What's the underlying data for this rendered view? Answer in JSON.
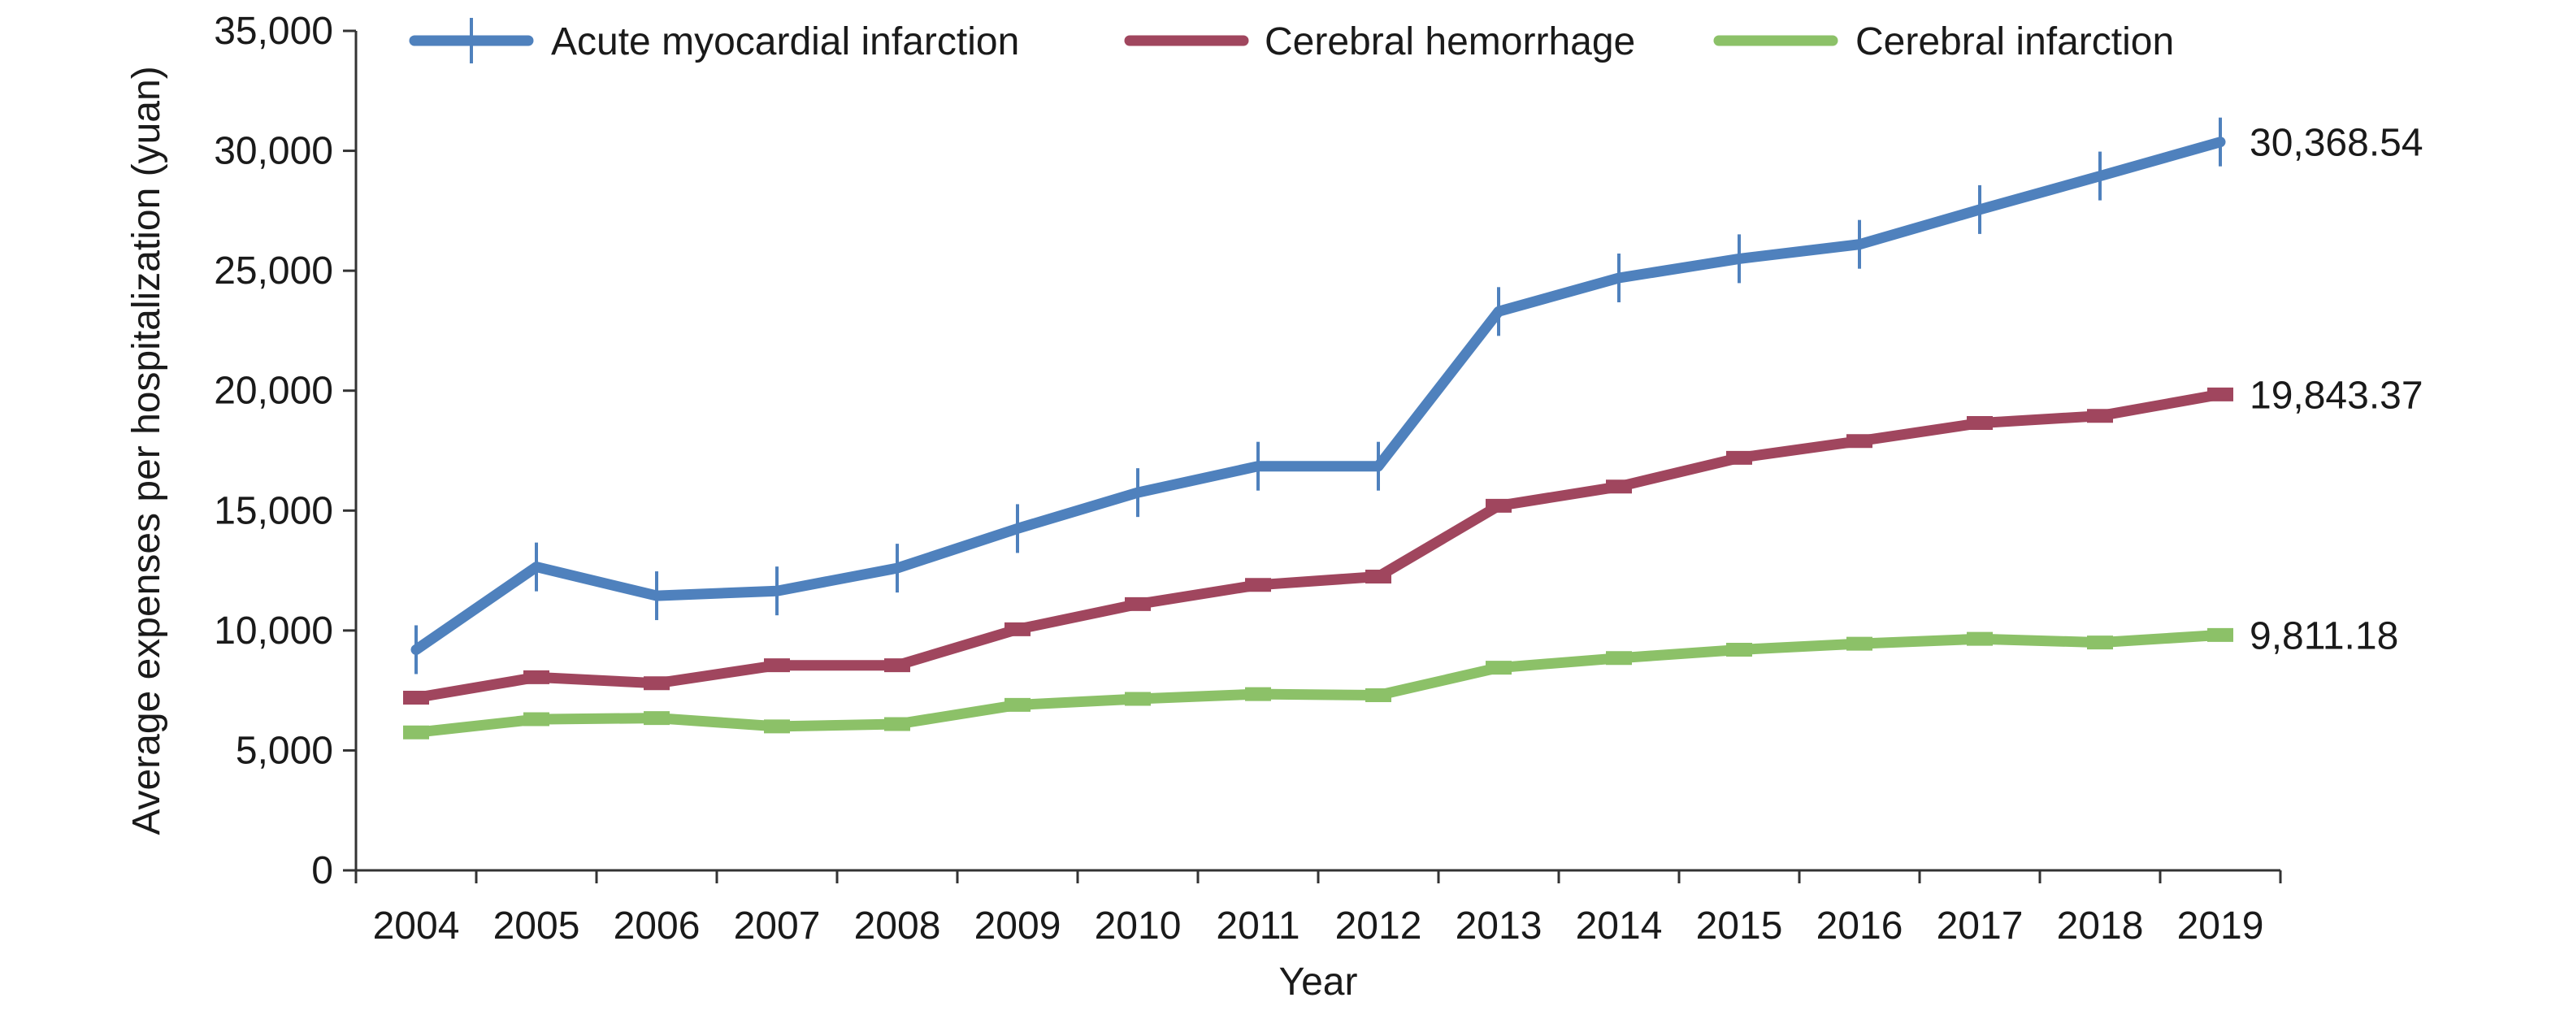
{
  "chart_data": {
    "type": "line",
    "title": "",
    "xlabel": "Year",
    "ylabel": "Average expenses per hospitalization (yuan)",
    "categories": [
      "2004",
      "2005",
      "2006",
      "2007",
      "2008",
      "2009",
      "2010",
      "2011",
      "2012",
      "2013",
      "2014",
      "2015",
      "2016",
      "2017",
      "2018",
      "2019"
    ],
    "ylim": [
      0,
      35000
    ],
    "yticks": [
      {
        "value": 0,
        "label": "0"
      },
      {
        "value": 5000,
        "label": "5,000"
      },
      {
        "value": 10000,
        "label": "10,000"
      },
      {
        "value": 15000,
        "label": "15,000"
      },
      {
        "value": 20000,
        "label": "20,000"
      },
      {
        "value": 25000,
        "label": "25,000"
      },
      {
        "value": 30000,
        "label": "30,000"
      },
      {
        "value": 35000,
        "label": "35,000"
      }
    ],
    "grid": false,
    "legend_position": "top",
    "series": [
      {
        "name": "Acute myocardial infarction",
        "color": "#4f81bd",
        "marker": "plus",
        "values": [
          9200,
          12650,
          11450,
          11650,
          12600,
          14250,
          15750,
          16850,
          16850,
          23300,
          24700,
          25500,
          26100,
          27550,
          28950,
          30368.54
        ],
        "end_label": "30,368.54"
      },
      {
        "name": "Cerebral hemorrhage",
        "color": "#a0465e",
        "marker": "dash",
        "values": [
          7200,
          8050,
          7800,
          8550,
          8550,
          10050,
          11100,
          11900,
          12250,
          15200,
          16000,
          17200,
          17900,
          18650,
          18950,
          19843.37
        ],
        "end_label": "19,843.37"
      },
      {
        "name": "Cerebral infarction",
        "color": "#8cc168",
        "marker": "dash",
        "values": [
          5750,
          6300,
          6350,
          6000,
          6100,
          6900,
          7150,
          7350,
          7300,
          8450,
          8850,
          9200,
          9450,
          9650,
          9500,
          9811.18
        ],
        "end_label": "9,811.18"
      }
    ]
  }
}
